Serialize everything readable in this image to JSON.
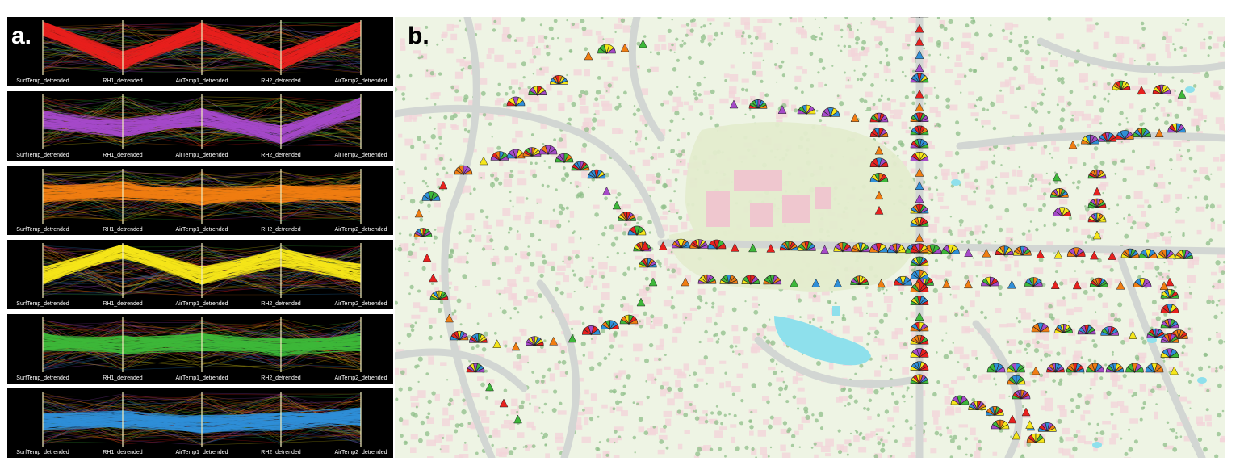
{
  "panel_a": {
    "label": "a.",
    "axis_labels": [
      "SurfTemp_detrended",
      "RH1_detrended",
      "AirTemp1_detrended",
      "RH2_detrended",
      "AirTemp2_detrended"
    ],
    "rows": [
      {
        "color": "#e8201e",
        "pattern": [
          0.1,
          0.75,
          0.2,
          0.75,
          0.1
        ]
      },
      {
        "color": "#a64ac9",
        "pattern": [
          0.45,
          0.62,
          0.4,
          0.75,
          0.2
        ]
      },
      {
        "color": "#f07d12",
        "pattern": [
          0.45,
          0.4,
          0.5,
          0.45,
          0.45
        ]
      },
      {
        "color": "#f5e61a",
        "pattern": [
          0.6,
          0.1,
          0.6,
          0.25,
          0.55
        ]
      },
      {
        "color": "#3db83a",
        "pattern": [
          0.45,
          0.5,
          0.45,
          0.55,
          0.45
        ]
      },
      {
        "color": "#2f8fd8",
        "pattern": [
          0.55,
          0.5,
          0.6,
          0.55,
          0.45
        ]
      }
    ]
  },
  "panel_b": {
    "label": "b.",
    "glyph_colors": [
      "#e8201e",
      "#2f8fd8",
      "#a64ac9",
      "#f07d12",
      "#f5e61a",
      "#3db83a"
    ],
    "map_colors": {
      "background": "#eef4e4",
      "road": "#d2d6d3",
      "building": "#f3d5da",
      "vegetation": "#8fbf8a",
      "park": "#e3eccd",
      "water": "#8ee0ec"
    }
  }
}
